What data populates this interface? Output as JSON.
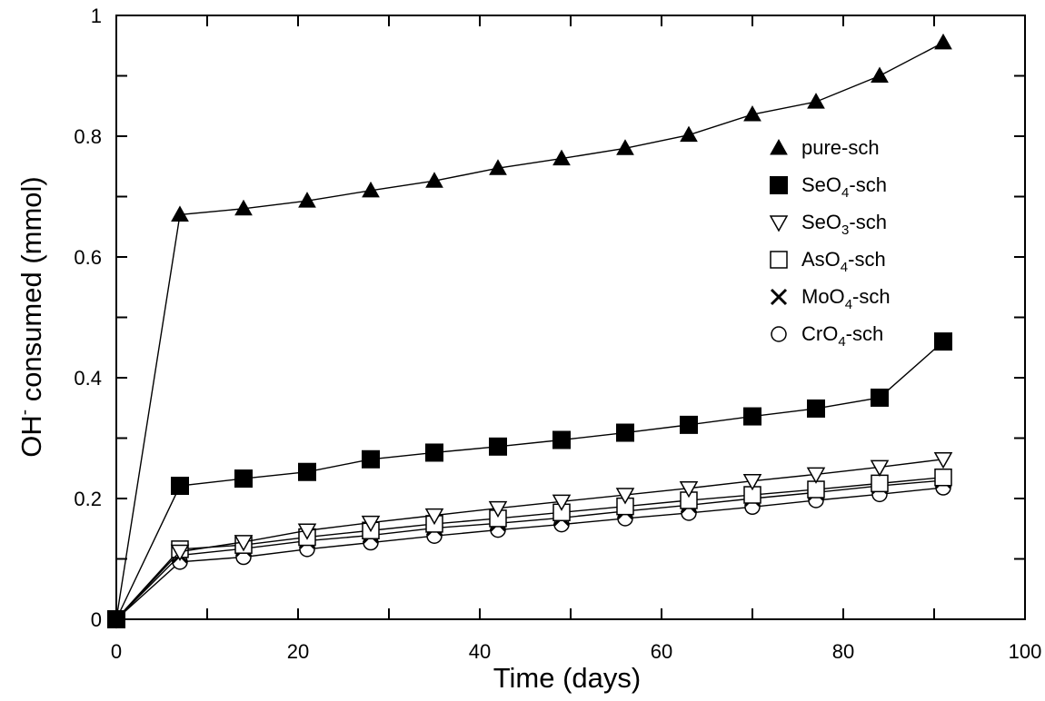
{
  "chart_data": {
    "type": "scatter",
    "xlabel": "Time (days)",
    "ylabel_main": "OH",
    "ylabel_sup": "-",
    "ylabel_rest": " consumed (mmol)",
    "xlim": [
      0,
      100
    ],
    "ylim": [
      0,
      1
    ],
    "x_ticks": [
      0,
      20,
      40,
      60,
      80,
      100
    ],
    "x_tick_labels": [
      "0",
      "20",
      "40",
      "60",
      "80",
      "100"
    ],
    "y_ticks": [
      0,
      0.2,
      0.4,
      0.6,
      0.8,
      1
    ],
    "y_tick_labels": [
      "0",
      "0.2",
      "0.4",
      "0.6",
      "0.8",
      "1"
    ],
    "grid": false,
    "legend_position": "right",
    "x": [
      0,
      7,
      14,
      21,
      28,
      35,
      42,
      49,
      56,
      63,
      70,
      77,
      84,
      91
    ],
    "series": [
      {
        "name": "pure-sch",
        "label_main": "pure-sch",
        "label_sub": "",
        "label_rest": "",
        "marker": "triangle-filled",
        "values": [
          0,
          0.67,
          0.68,
          0.693,
          0.71,
          0.726,
          0.747,
          0.763,
          0.78,
          0.802,
          0.836,
          0.857,
          0.9,
          0.955
        ]
      },
      {
        "name": "SeO4-sch",
        "label_main": "SeO",
        "label_sub": "4",
        "label_rest": "-sch",
        "marker": "square-filled",
        "values": [
          0,
          0.221,
          0.233,
          0.244,
          0.265,
          0.276,
          0.286,
          0.297,
          0.309,
          0.322,
          0.336,
          0.349,
          0.367,
          0.46
        ]
      },
      {
        "name": "SeO3-sch",
        "label_main": "SeO",
        "label_sub": "3",
        "label_rest": "-sch",
        "marker": "triangle-down-open",
        "values": [
          0,
          0.112,
          0.128,
          0.147,
          0.16,
          0.172,
          0.184,
          0.195,
          0.206,
          0.217,
          0.229,
          0.24,
          0.252,
          0.265
        ]
      },
      {
        "name": "AsO4-sch",
        "label_main": "AsO",
        "label_sub": "4",
        "label_rest": "-sch",
        "marker": "square-open",
        "values": [
          0,
          0.116,
          0.123,
          0.136,
          0.147,
          0.158,
          0.167,
          0.177,
          0.187,
          0.197,
          0.206,
          0.215,
          0.225,
          0.235
        ]
      },
      {
        "name": "MoO4-sch",
        "label_main": "MoO",
        "label_sub": "4",
        "label_rest": "-sch",
        "marker": "x",
        "values": [
          0,
          0.106,
          0.117,
          0.13,
          0.139,
          0.151,
          0.159,
          0.168,
          0.179,
          0.189,
          0.2,
          0.21,
          0.221,
          0.23
        ]
      },
      {
        "name": "CrO4-sch",
        "label_main": "CrO",
        "label_sub": "4",
        "label_rest": "-sch",
        "marker": "circle-open",
        "values": [
          0,
          0.095,
          0.103,
          0.116,
          0.127,
          0.138,
          0.148,
          0.157,
          0.167,
          0.176,
          0.186,
          0.197,
          0.207,
          0.218
        ]
      }
    ]
  }
}
